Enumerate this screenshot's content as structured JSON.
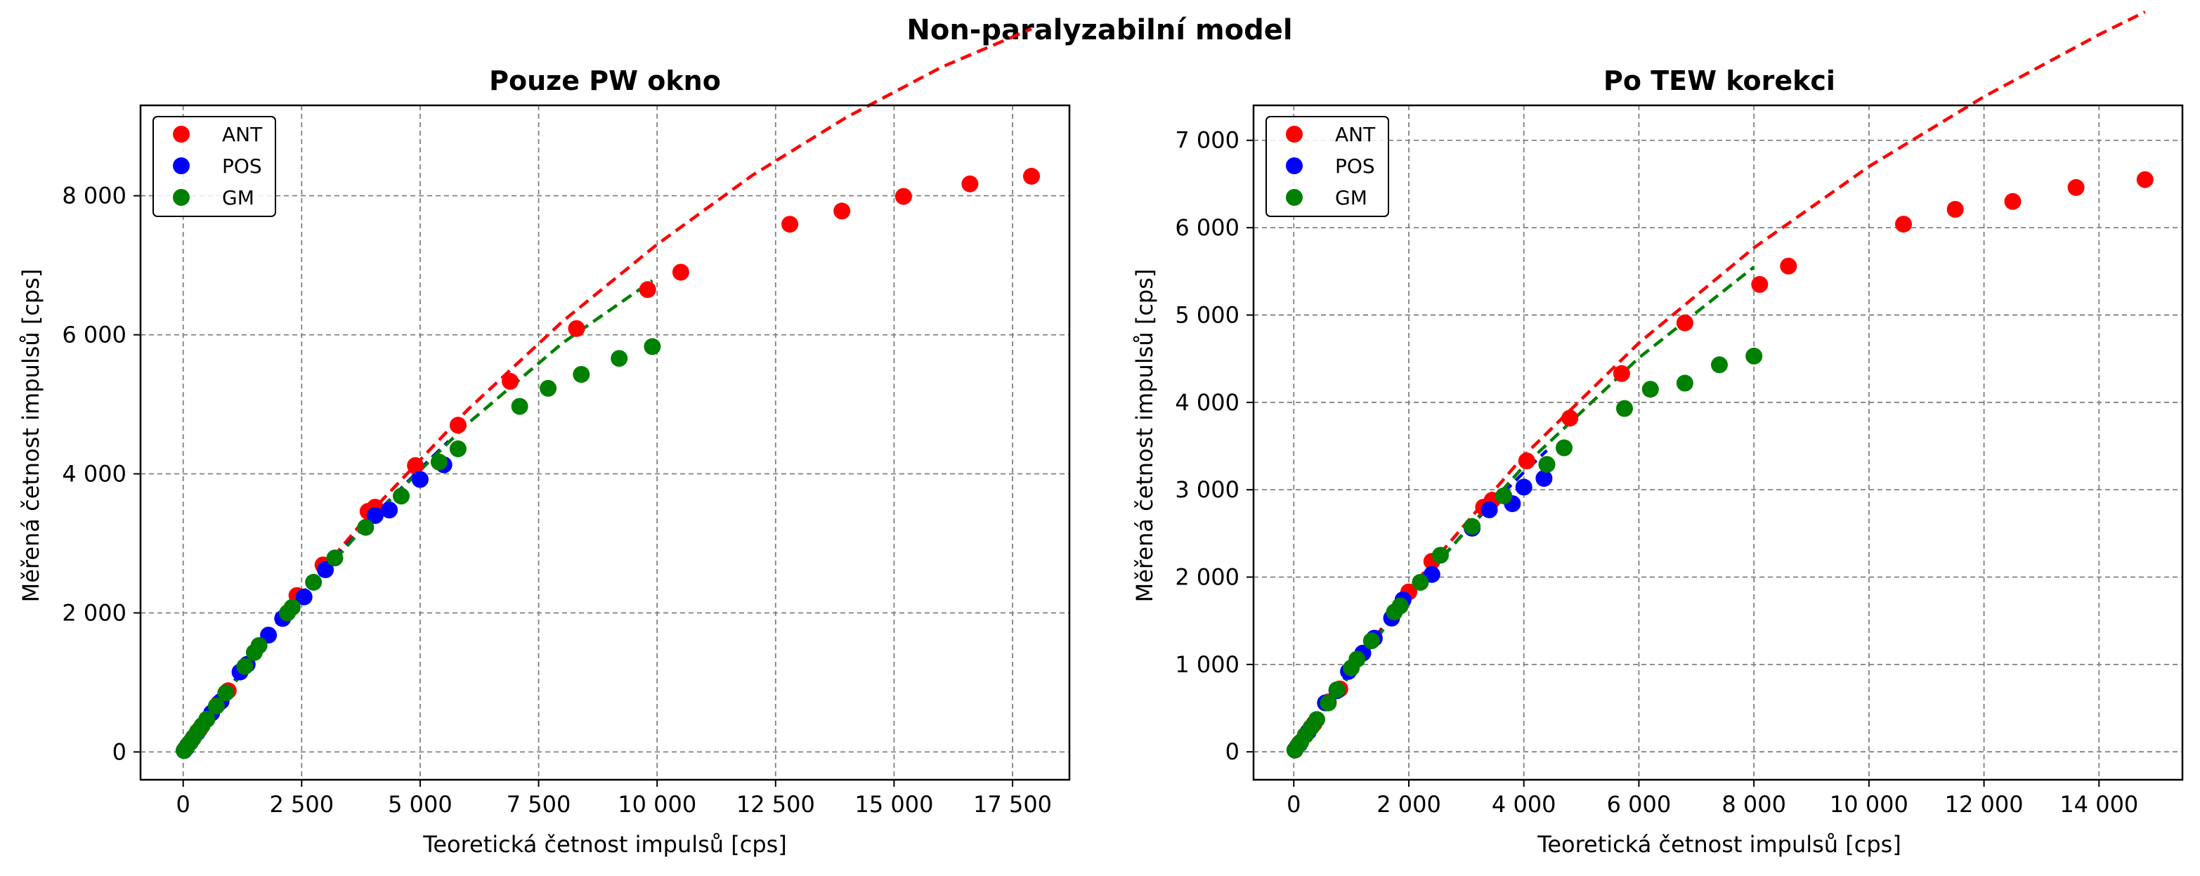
{
  "figure": {
    "suptitle": "Non-paralyzabilní model"
  },
  "colors": {
    "ANT": "#ff0000",
    "POS": "#0000ff",
    "GM": "#008000"
  },
  "chart_data": [
    {
      "type": "scatter",
      "title": "Pouze PW okno",
      "xlabel": "Teoretická četnost impulsů [cps]",
      "ylabel": "Měřená četnost impulsů [cps]",
      "xlim": [
        -900,
        18700
      ],
      "ylim": [
        -400,
        9300
      ],
      "xticks": [
        0,
        2500,
        5000,
        7500,
        10000,
        12500,
        15000,
        17500
      ],
      "yticks": [
        0,
        2000,
        4000,
        6000,
        8000
      ],
      "xtick_labels": [
        "0",
        "2 500",
        "5 000",
        "7 500",
        "10 000",
        "12 500",
        "15 000",
        "17 500"
      ],
      "ytick_labels": [
        "0",
        "2 000",
        "4 000",
        "6 000",
        "8 000"
      ],
      "grid": true,
      "legend": {
        "position": "top-left",
        "labels": [
          "ANT",
          "POS",
          "GM"
        ]
      },
      "series": [
        {
          "name": "ANT",
          "color": "#ff0000",
          "points": [
            [
              30,
              30
            ],
            [
              100,
              100
            ],
            [
              200,
              190
            ],
            [
              350,
              330
            ],
            [
              500,
              470
            ],
            [
              750,
              700
            ],
            [
              950,
              880
            ],
            [
              2400,
              2250
            ],
            [
              2950,
              2690
            ],
            [
              3900,
              3460
            ],
            [
              4050,
              3520
            ],
            [
              4900,
              4120
            ],
            [
              5800,
              4700
            ],
            [
              6900,
              5330
            ],
            [
              8300,
              6090
            ],
            [
              9800,
              6650
            ],
            [
              10500,
              6900
            ],
            [
              12800,
              7590
            ],
            [
              13900,
              7780
            ],
            [
              15200,
              7990
            ],
            [
              16600,
              8170
            ],
            [
              17900,
              8280
            ]
          ],
          "fit": [
            [
              0,
              0
            ],
            [
              2000,
              1860
            ],
            [
              4000,
              3480
            ],
            [
              6000,
              4920
            ],
            [
              8000,
              6190
            ],
            [
              10000,
              7300
            ],
            [
              12000,
              8290
            ],
            [
              14000,
              9130
            ],
            [
              16000,
              9850
            ],
            [
              17900,
              10400
            ]
          ]
        },
        {
          "name": "POS",
          "color": "#0000ff",
          "points": [
            [
              20,
              20
            ],
            [
              60,
              55
            ],
            [
              150,
              140
            ],
            [
              300,
              280
            ],
            [
              600,
              560
            ],
            [
              800,
              730
            ],
            [
              1200,
              1150
            ],
            [
              1350,
              1260
            ],
            [
              1800,
              1680
            ],
            [
              2100,
              1920
            ],
            [
              2550,
              2230
            ],
            [
              3000,
              2620
            ],
            [
              4050,
              3400
            ],
            [
              4350,
              3480
            ],
            [
              5000,
              3920
            ],
            [
              5500,
              4130
            ]
          ],
          "fit": [
            [
              0,
              0
            ],
            [
              1000,
              950
            ],
            [
              2000,
              1860
            ],
            [
              3000,
              2640
            ],
            [
              4000,
              3380
            ],
            [
              5000,
              4070
            ],
            [
              5600,
              4470
            ]
          ]
        },
        {
          "name": "GM",
          "color": "#008000",
          "points": [
            [
              20,
              20
            ],
            [
              80,
              80
            ],
            [
              150,
              140
            ],
            [
              220,
              210
            ],
            [
              300,
              290
            ],
            [
              400,
              380
            ],
            [
              500,
              470
            ],
            [
              700,
              660
            ],
            [
              900,
              850
            ],
            [
              1300,
              1230
            ],
            [
              1500,
              1430
            ],
            [
              1600,
              1530
            ],
            [
              2200,
              2000
            ],
            [
              2300,
              2080
            ],
            [
              2750,
              2440
            ],
            [
              3200,
              2790
            ],
            [
              3850,
              3230
            ],
            [
              4600,
              3680
            ],
            [
              5400,
              4170
            ],
            [
              5800,
              4360
            ],
            [
              7100,
              4970
            ],
            [
              7700,
              5230
            ],
            [
              8400,
              5430
            ],
            [
              9200,
              5660
            ],
            [
              9900,
              5830
            ]
          ],
          "fit": [
            [
              0,
              0
            ],
            [
              2000,
              1830
            ],
            [
              4000,
              3380
            ],
            [
              6000,
              4720
            ],
            [
              8000,
              5880
            ],
            [
              9900,
              6780
            ]
          ]
        }
      ]
    },
    {
      "type": "scatter",
      "title": "Po TEW korekci",
      "xlabel": "Teoretická četnost impulsů [cps]",
      "ylabel": "Měřená četnost impulsů [cps]",
      "xlim": [
        -700,
        15450
      ],
      "ylim": [
        -320,
        7400
      ],
      "xticks": [
        0,
        2000,
        4000,
        6000,
        8000,
        10000,
        12000,
        14000
      ],
      "yticks": [
        0,
        1000,
        2000,
        3000,
        4000,
        5000,
        6000,
        7000
      ],
      "xtick_labels": [
        "0",
        "2 000",
        "4 000",
        "6 000",
        "8 000",
        "10 000",
        "12 000",
        "14 000"
      ],
      "ytick_labels": [
        "0",
        "1 000",
        "2 000",
        "3 000",
        "4 000",
        "5 000",
        "6 000",
        "7 000"
      ],
      "grid": true,
      "legend": {
        "position": "top-left",
        "labels": [
          "ANT",
          "POS",
          "GM"
        ]
      },
      "series": [
        {
          "name": "ANT",
          "color": "#ff0000",
          "points": [
            [
              20,
              20
            ],
            [
              100,
              100
            ],
            [
              200,
              190
            ],
            [
              350,
              320
            ],
            [
              600,
              570
            ],
            [
              800,
              720
            ],
            [
              2000,
              1830
            ],
            [
              2400,
              2180
            ],
            [
              3300,
              2800
            ],
            [
              3450,
              2880
            ],
            [
              4050,
              3330
            ],
            [
              4800,
              3820
            ],
            [
              5700,
              4330
            ],
            [
              6800,
              4910
            ],
            [
              8100,
              5350
            ],
            [
              8600,
              5560
            ],
            [
              10600,
              6040
            ],
            [
              11500,
              6210
            ],
            [
              12500,
              6300
            ],
            [
              13600,
              6460
            ],
            [
              14800,
              6550
            ]
          ],
          "fit": [
            [
              0,
              0
            ],
            [
              2000,
              1850
            ],
            [
              4000,
              3390
            ],
            [
              6000,
              4680
            ],
            [
              8000,
              5770
            ],
            [
              10000,
              6700
            ],
            [
              12000,
              7500
            ],
            [
              14000,
              8210
            ],
            [
              14800,
              8470
            ]
          ]
        },
        {
          "name": "POS",
          "color": "#0000ff",
          "points": [
            [
              20,
              20
            ],
            [
              100,
              90
            ],
            [
              250,
              230
            ],
            [
              550,
              560
            ],
            [
              750,
              700
            ],
            [
              950,
              920
            ],
            [
              1200,
              1130
            ],
            [
              1400,
              1300
            ],
            [
              1700,
              1530
            ],
            [
              1900,
              1740
            ],
            [
              2400,
              2030
            ],
            [
              3100,
              2560
            ],
            [
              3400,
              2770
            ],
            [
              3800,
              2840
            ],
            [
              4000,
              3030
            ],
            [
              4350,
              3130
            ]
          ],
          "fit": [
            [
              0,
              0
            ],
            [
              1000,
              950
            ],
            [
              2000,
              1780
            ],
            [
              3000,
              2540
            ],
            [
              4000,
              3200
            ],
            [
              4400,
              3450
            ]
          ]
        },
        {
          "name": "GM",
          "color": "#008000",
          "points": [
            [
              20,
              20
            ],
            [
              60,
              60
            ],
            [
              120,
              110
            ],
            [
              200,
              190
            ],
            [
              300,
              280
            ],
            [
              400,
              370
            ],
            [
              600,
              560
            ],
            [
              750,
              710
            ],
            [
              1000,
              960
            ],
            [
              1100,
              1060
            ],
            [
              1350,
              1270
            ],
            [
              1750,
              1600
            ],
            [
              1850,
              1670
            ],
            [
              2200,
              1940
            ],
            [
              2550,
              2250
            ],
            [
              3100,
              2580
            ],
            [
              3650,
              2930
            ],
            [
              4400,
              3290
            ],
            [
              4700,
              3480
            ],
            [
              5750,
              3930
            ],
            [
              6200,
              4150
            ],
            [
              6800,
              4220
            ],
            [
              7400,
              4430
            ],
            [
              8000,
              4530
            ]
          ],
          "fit": [
            [
              0,
              0
            ],
            [
              2000,
              1800
            ],
            [
              4000,
              3270
            ],
            [
              6000,
              4510
            ],
            [
              8000,
              5550
            ]
          ]
        }
      ]
    }
  ]
}
